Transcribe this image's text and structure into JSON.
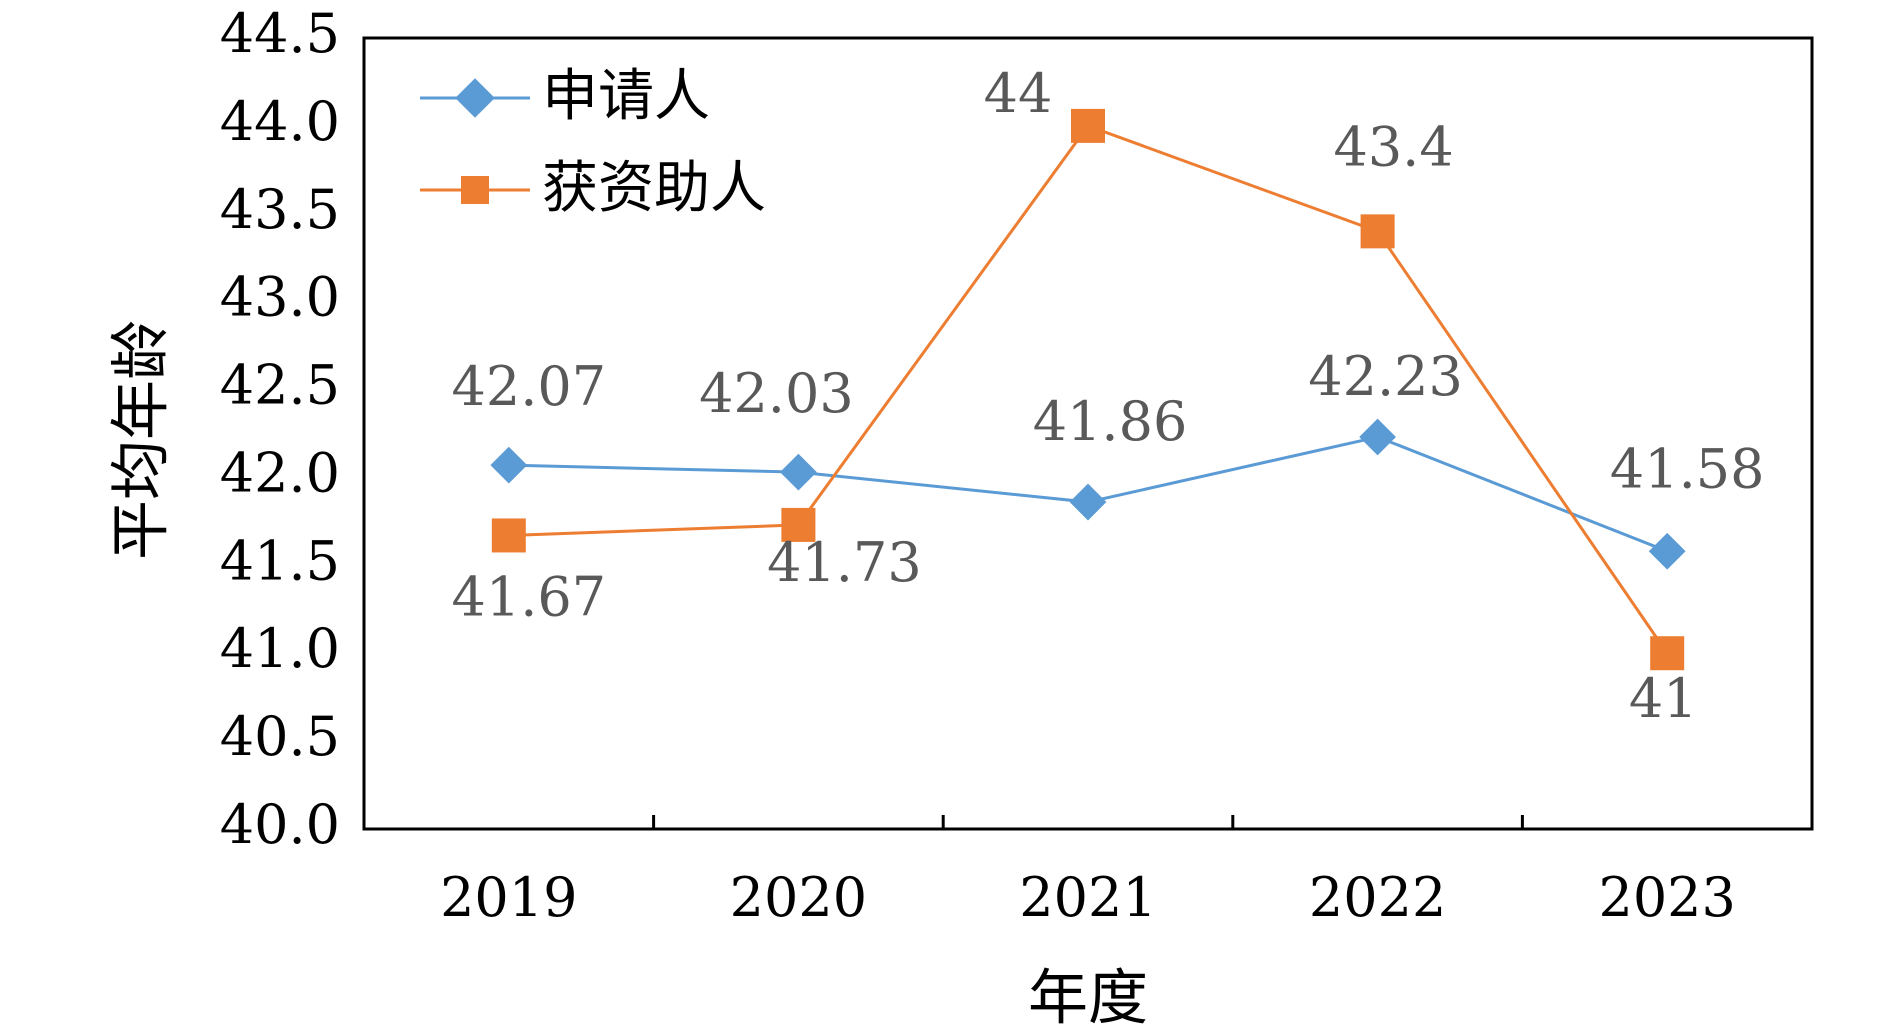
{
  "chart_data": {
    "type": "line",
    "categories": [
      "2019",
      "2020",
      "2021",
      "2022",
      "2023"
    ],
    "series": [
      {
        "name": "申请人",
        "values": [
          42.07,
          42.03,
          41.86,
          42.23,
          41.58
        ],
        "color": "#5B9BD5",
        "marker": "diamond"
      },
      {
        "name": "获资助人",
        "values": [
          41.67,
          41.73,
          44,
          43.4,
          41
        ],
        "color": "#ED7D31",
        "marker": "square"
      }
    ],
    "data_labels": [
      [
        "42.07",
        "42.03",
        "41.86",
        "42.23",
        "41.58"
      ],
      [
        "41.67",
        "41.73",
        "44",
        "43.4",
        "41"
      ]
    ],
    "xlabel": "年度",
    "ylabel": "平均年龄",
    "ylim": [
      40.0,
      44.5
    ],
    "yticks": [
      40.0,
      40.5,
      41.0,
      41.5,
      42.0,
      42.5,
      43.0,
      43.5,
      44.0,
      44.5
    ],
    "ytick_labels": [
      "40.0",
      "40.5",
      "41.0",
      "41.5",
      "42.0",
      "42.5",
      "43.0",
      "43.5",
      "44.0",
      "44.5"
    ],
    "legend_position": "top-left",
    "grid": false
  }
}
